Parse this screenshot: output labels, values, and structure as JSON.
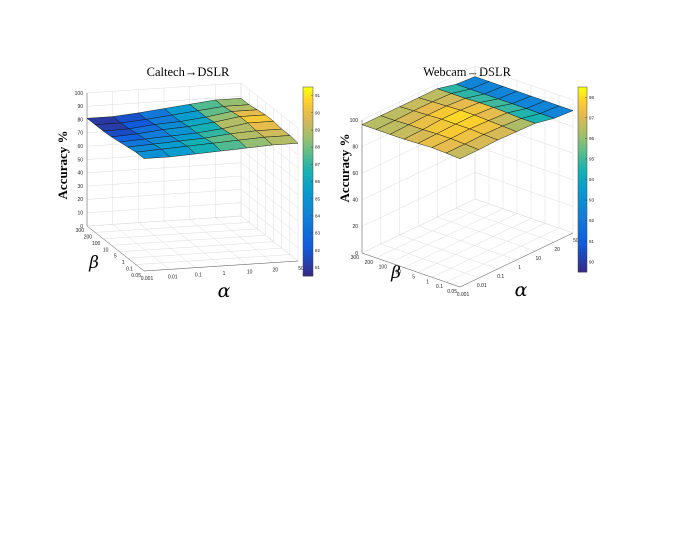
{
  "chart_data": [
    {
      "type": "surface",
      "title": "Caltech→DSLR",
      "zlabel": "Accuracy %",
      "xlabel": "α",
      "ylabel": "β",
      "x_ticks": [
        "0.001",
        "0.01",
        "0.1",
        "1",
        "10",
        "20",
        "50"
      ],
      "y_ticks": [
        "0.05",
        "0.1",
        "1",
        "5",
        "10",
        "100",
        "200",
        "300"
      ],
      "z_ticks": [
        "0",
        "10",
        "20",
        "30",
        "40",
        "50",
        "60",
        "70",
        "80",
        "90",
        "100"
      ],
      "zlim": [
        0,
        100
      ],
      "colorbar": {
        "ticks": [
          "81",
          "82",
          "83",
          "84",
          "85",
          "86",
          "87",
          "88",
          "89",
          "90",
          "91"
        ],
        "range": [
          80.5,
          91.5
        ],
        "colormap": "parula"
      },
      "grid": true,
      "z": [
        [
          84.5,
          84.5,
          85.5,
          86.5,
          87.5,
          88.5,
          88.5
        ],
        [
          84.5,
          85.5,
          86.5,
          87.5,
          88.5,
          89.5,
          89.5
        ],
        [
          83.5,
          84.5,
          85.5,
          86.5,
          88.5,
          89.5,
          89.5
        ],
        [
          82.5,
          83.5,
          84.5,
          85.5,
          87.5,
          90.5,
          90.5
        ],
        [
          81.5,
          82.5,
          84.5,
          85.5,
          87.5,
          90.5,
          90.5
        ],
        [
          81.0,
          81.5,
          83.5,
          84.5,
          86.5,
          89.5,
          89.5
        ],
        [
          81.0,
          81.0,
          82.5,
          84.5,
          86.5,
          88.5,
          88.5
        ],
        [
          81.0,
          81.0,
          82.5,
          84.5,
          86.5,
          88.5,
          88.5
        ]
      ]
    },
    {
      "type": "surface",
      "title": "Webcam→DSLR",
      "zlabel": "Accuracy %",
      "xlabel": "α",
      "ylabel": "β",
      "x_ticks": [
        "0.001",
        "0.01",
        "0.1",
        "1",
        "10",
        "20",
        "50"
      ],
      "y_ticks": [
        "0.05",
        "0.1",
        "1",
        "5",
        "10",
        "100",
        "200",
        "300"
      ],
      "z_ticks": [
        "0",
        "20",
        "40",
        "60",
        "80",
        "100"
      ],
      "zlim": [
        0,
        100
      ],
      "colorbar": {
        "ticks": [
          "90",
          "91",
          "92",
          "93",
          "94",
          "95",
          "96",
          "97",
          "98"
        ],
        "range": [
          89.5,
          98.5
        ],
        "colormap": "parula"
      },
      "grid": true,
      "z": [
        [
          96.5,
          96.5,
          97.0,
          96.5,
          96.0,
          93.0,
          92.0
        ],
        [
          97.0,
          97.0,
          97.5,
          97.0,
          96.0,
          93.0,
          92.0
        ],
        [
          97.5,
          97.5,
          98.0,
          97.5,
          96.5,
          93.0,
          92.0
        ],
        [
          97.0,
          97.5,
          98.0,
          98.0,
          97.0,
          93.0,
          92.0
        ],
        [
          96.5,
          97.0,
          98.0,
          98.0,
          97.0,
          93.0,
          92.0
        ],
        [
          96.5,
          97.0,
          97.5,
          97.5,
          96.5,
          93.0,
          92.0
        ],
        [
          96.5,
          96.5,
          97.0,
          97.0,
          96.5,
          93.0,
          92.0
        ],
        [
          96.5,
          96.5,
          96.5,
          96.5,
          96.5,
          93.0,
          92.0
        ]
      ]
    }
  ]
}
